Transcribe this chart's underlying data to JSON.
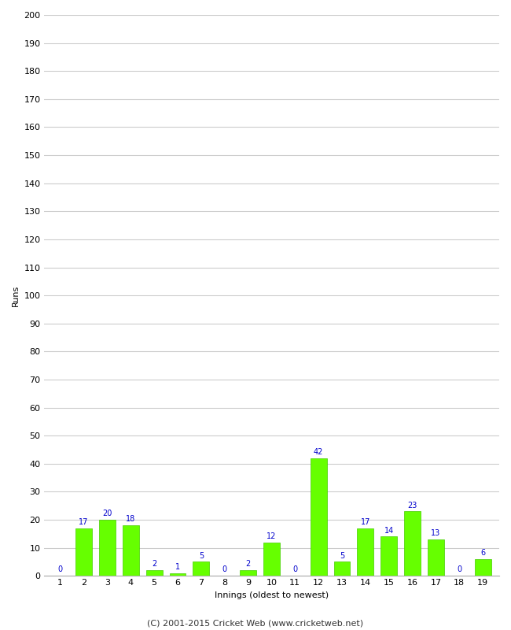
{
  "innings": [
    1,
    2,
    3,
    4,
    5,
    6,
    7,
    8,
    9,
    10,
    11,
    12,
    13,
    14,
    15,
    16,
    17,
    18,
    19
  ],
  "runs": [
    0,
    17,
    20,
    18,
    2,
    1,
    5,
    0,
    2,
    12,
    0,
    42,
    5,
    17,
    14,
    23,
    13,
    0,
    6
  ],
  "bar_color": "#66ff00",
  "bar_edge_color": "#44cc00",
  "label_color": "#0000cc",
  "ylabel": "Runs",
  "xlabel": "Innings (oldest to newest)",
  "ylim": [
    0,
    200
  ],
  "yticks": [
    0,
    10,
    20,
    30,
    40,
    50,
    60,
    70,
    80,
    90,
    100,
    110,
    120,
    130,
    140,
    150,
    160,
    170,
    180,
    190,
    200
  ],
  "footer": "(C) 2001-2015 Cricket Web (www.cricketweb.net)",
  "background_color": "#ffffff",
  "grid_color": "#cccccc",
  "label_fontsize": 8,
  "tick_fontsize": 8,
  "footer_fontsize": 8,
  "bar_label_fontsize": 7
}
